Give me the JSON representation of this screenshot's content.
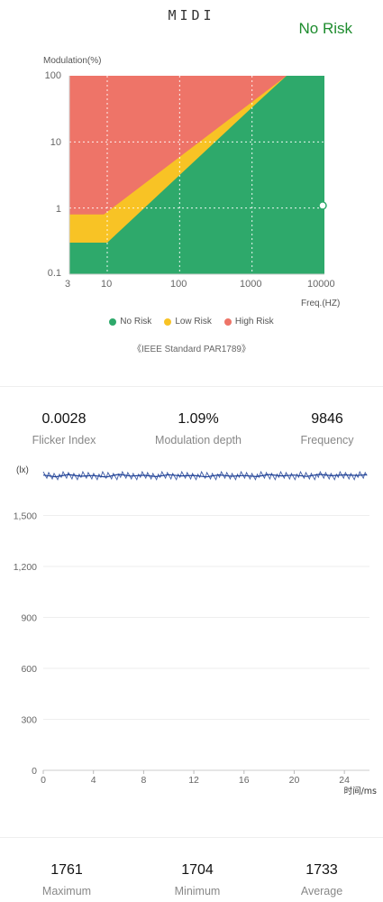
{
  "header": {
    "device_name": "MIDI",
    "risk_status": "No Risk"
  },
  "risk_chart": {
    "ylabel": "Modulation(%)",
    "xlabel": "Freq.(HZ)",
    "y_ticks": [
      "100",
      "10",
      "1",
      "0.1"
    ],
    "x_ticks": [
      "3",
      "10",
      "100",
      "1000",
      "10000"
    ],
    "legend": [
      {
        "label": "No Risk",
        "color": "#2ea96b"
      },
      {
        "label": "Low Risk",
        "color": "#f8c325"
      },
      {
        "label": "High Risk",
        "color": "#ee7468"
      }
    ],
    "standard_note": "《IEEE Standard PAR1789》"
  },
  "stats_top": [
    {
      "value": "0.0028",
      "label": "Flicker Index"
    },
    {
      "value": "1.09%",
      "label": "Modulation depth"
    },
    {
      "value": "9846",
      "label": "Frequency"
    }
  ],
  "stats_bottom": [
    {
      "value": "1761",
      "label": "Maximum"
    },
    {
      "value": "1704",
      "label": "Minimum"
    },
    {
      "value": "1733",
      "label": "Average"
    }
  ],
  "chart_data": [
    {
      "type": "area",
      "title": "",
      "xlabel": "Freq.(HZ)",
      "ylabel": "Modulation(%)",
      "x_scale": "log",
      "y_scale": "log",
      "xlim": [
        3,
        10000
      ],
      "ylim": [
        0.1,
        100
      ],
      "x_ticks": [
        3,
        10,
        100,
        1000,
        10000
      ],
      "y_ticks": [
        0.1,
        1,
        10,
        100
      ],
      "zones": [
        {
          "name": "No Risk",
          "color": "#2ea96b"
        },
        {
          "name": "Low Risk",
          "color": "#f8c325"
        },
        {
          "name": "High Risk",
          "color": "#ee7468"
        }
      ],
      "low_risk_boundary": [
        [
          3,
          0.8
        ],
        [
          9,
          0.8
        ],
        [
          3000,
          100
        ]
      ],
      "no_risk_boundary": [
        [
          3,
          0.3
        ],
        [
          10,
          0.3
        ],
        [
          1200,
          40
        ],
        [
          3000,
          100
        ]
      ],
      "measured_point": {
        "x": 9846,
        "y": 1.09
      },
      "grid": true
    },
    {
      "type": "line",
      "title": "",
      "xlabel": "时间/ms",
      "ylabel": "(lx)",
      "xlim": [
        0,
        26
      ],
      "ylim": [
        0,
        1800
      ],
      "x_ticks": [
        0,
        4,
        8,
        12,
        16,
        20,
        24
      ],
      "y_ticks": [
        0,
        300,
        600,
        900,
        1200,
        1500
      ],
      "y_tick_labels": [
        "0",
        "300",
        "600",
        "900",
        "1,200",
        "1,500"
      ],
      "grid": true,
      "series": [
        {
          "color": "#1d3f95",
          "x": [
            0,
            1,
            2,
            3,
            4,
            5,
            6,
            7,
            8,
            9,
            10,
            11,
            12,
            13,
            14,
            15,
            16,
            17,
            18,
            19,
            20,
            21,
            22,
            23,
            24,
            25,
            25.8
          ],
          "y": [
            1738,
            1728,
            1741,
            1731,
            1735,
            1726,
            1742,
            1732,
            1737,
            1729,
            1740,
            1733,
            1736,
            1727,
            1739,
            1731,
            1735,
            1729,
            1741,
            1733,
            1738,
            1730,
            1742,
            1734,
            1739,
            1736,
            1740
          ]
        }
      ]
    }
  ]
}
